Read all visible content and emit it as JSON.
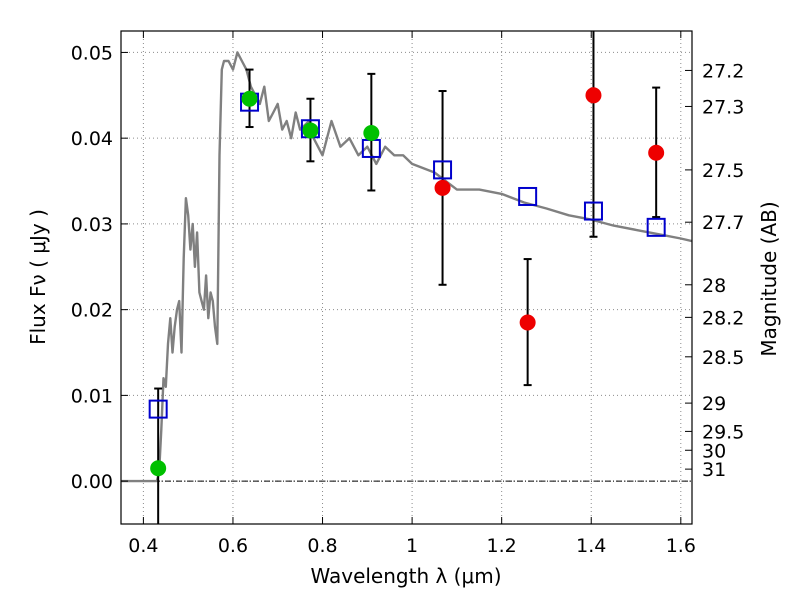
{
  "chart_data": {
    "type": "scatter",
    "x_axis": {
      "label": "Wavelength  λ (μm)",
      "range": [
        0.35,
        1.625
      ],
      "ticks": [
        0.4,
        0.6,
        0.8,
        1.0,
        1.2,
        1.4,
        1.6
      ],
      "tick_labels": [
        "0.4",
        "0.6",
        "0.8",
        "1",
        "1.2",
        "1.4",
        "1.6"
      ]
    },
    "y_axis": {
      "label": "Flux  Fν  ( μJy )",
      "range": [
        -0.005,
        0.0525
      ],
      "ticks": [
        0.0,
        0.01,
        0.02,
        0.03,
        0.04,
        0.05
      ],
      "tick_labels": [
        "0.00",
        "0.01",
        "0.02",
        "0.03",
        "0.04",
        "0.05"
      ]
    },
    "y2_axis": {
      "label": "Magnitude (AB)",
      "ticks": [
        {
          "label": "27.2",
          "flux": 0.0479
        },
        {
          "label": "27.3",
          "flux": 0.0437
        },
        {
          "label": "27.5",
          "flux": 0.0363
        },
        {
          "label": "27.7",
          "flux": 0.0302
        },
        {
          "label": "28",
          "flux": 0.0229
        },
        {
          "label": "28.2",
          "flux": 0.0191
        },
        {
          "label": "28.5",
          "flux": 0.0145
        },
        {
          "label": "29",
          "flux": 0.0091
        },
        {
          "label": "29.5",
          "flux": 0.0058
        },
        {
          "label": "30",
          "flux": 0.0036
        },
        {
          "label": "31",
          "flux": 0.0014
        }
      ]
    },
    "grid": true,
    "template_spectrum": {
      "color": "#808080",
      "x": [
        0.35,
        0.43,
        0.435,
        0.44,
        0.445,
        0.45,
        0.455,
        0.46,
        0.465,
        0.47,
        0.475,
        0.48,
        0.485,
        0.49,
        0.495,
        0.5,
        0.505,
        0.51,
        0.515,
        0.52,
        0.525,
        0.53,
        0.535,
        0.54,
        0.545,
        0.55,
        0.555,
        0.56,
        0.565,
        0.57,
        0.575,
        0.58,
        0.59,
        0.6,
        0.61,
        0.62,
        0.63,
        0.64,
        0.65,
        0.66,
        0.67,
        0.68,
        0.69,
        0.7,
        0.71,
        0.72,
        0.73,
        0.74,
        0.75,
        0.77,
        0.78,
        0.8,
        0.82,
        0.84,
        0.86,
        0.88,
        0.9,
        0.92,
        0.94,
        0.96,
        0.98,
        1.0,
        1.05,
        1.1,
        1.15,
        1.2,
        1.25,
        1.3,
        1.35,
        1.4,
        1.45,
        1.5,
        1.55,
        1.6,
        1.625
      ],
      "y": [
        0.0,
        0.0,
        0.001,
        0.006,
        0.012,
        0.011,
        0.016,
        0.019,
        0.015,
        0.018,
        0.02,
        0.021,
        0.015,
        0.026,
        0.033,
        0.031,
        0.027,
        0.03,
        0.025,
        0.029,
        0.022,
        0.021,
        0.02,
        0.024,
        0.019,
        0.022,
        0.021,
        0.018,
        0.016,
        0.038,
        0.048,
        0.049,
        0.049,
        0.048,
        0.05,
        0.049,
        0.048,
        0.046,
        0.045,
        0.044,
        0.046,
        0.042,
        0.043,
        0.044,
        0.041,
        0.042,
        0.04,
        0.043,
        0.041,
        0.042,
        0.04,
        0.038,
        0.042,
        0.039,
        0.04,
        0.038,
        0.039,
        0.037,
        0.039,
        0.038,
        0.038,
        0.037,
        0.036,
        0.034,
        0.034,
        0.0335,
        0.0325,
        0.0318,
        0.031,
        0.0305,
        0.0298,
        0.0293,
        0.0288,
        0.0283,
        0.028
      ]
    },
    "series": [
      {
        "marker": "open-square",
        "color": "#0000cc",
        "points": [
          {
            "x": 0.433,
            "y": 0.0084
          },
          {
            "x": 0.637,
            "y": 0.0442
          },
          {
            "x": 0.773,
            "y": 0.0411
          },
          {
            "x": 0.909,
            "y": 0.0388
          },
          {
            "x": 1.068,
            "y": 0.0363
          },
          {
            "x": 1.258,
            "y": 0.0332
          },
          {
            "x": 1.405,
            "y": 0.0315
          },
          {
            "x": 1.545,
            "y": 0.0296
          }
        ]
      },
      {
        "marker": "filled-circle",
        "color": "#00c000",
        "points": [
          {
            "x": 0.433,
            "y": 0.0015,
            "yerr_lo": -0.006,
            "yerr_hi": 0.0108
          },
          {
            "x": 0.637,
            "y": 0.0446,
            "yerr_lo": 0.0413,
            "yerr_hi": 0.048
          },
          {
            "x": 0.773,
            "y": 0.0409,
            "yerr_lo": 0.0373,
            "yerr_hi": 0.0446
          },
          {
            "x": 0.909,
            "y": 0.0406,
            "yerr_lo": 0.0339,
            "yerr_hi": 0.0475
          }
        ]
      },
      {
        "marker": "filled-circle",
        "color": "#ee0000",
        "points": [
          {
            "x": 1.068,
            "y": 0.0342,
            "yerr_lo": 0.0229,
            "yerr_hi": 0.0455
          },
          {
            "x": 1.258,
            "y": 0.0185,
            "yerr_lo": 0.0112,
            "yerr_hi": 0.0259
          },
          {
            "x": 1.405,
            "y": 0.045,
            "yerr_lo": 0.0285,
            "yerr_hi": 0.06
          },
          {
            "x": 1.545,
            "y": 0.0383,
            "yerr_lo": 0.0308,
            "yerr_hi": 0.0459
          }
        ]
      }
    ]
  }
}
